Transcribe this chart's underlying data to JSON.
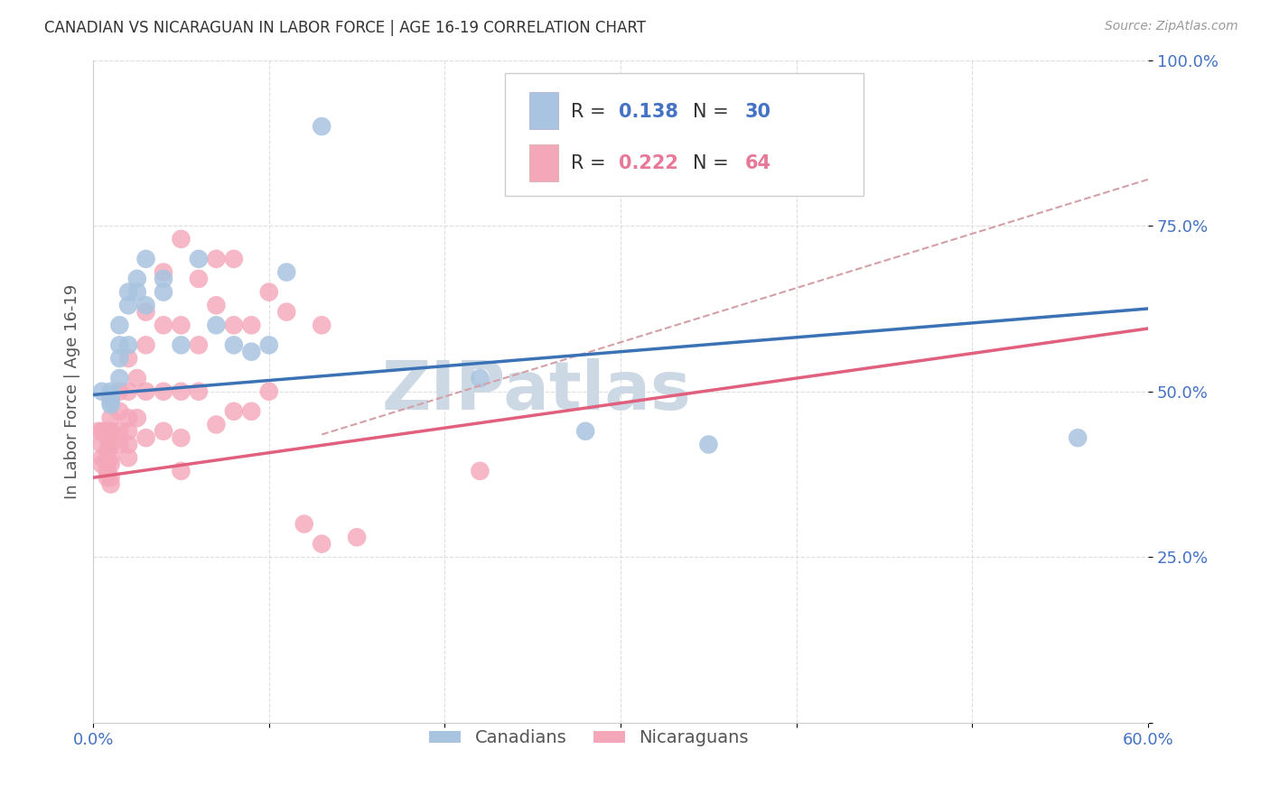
{
  "title": "CANADIAN VS NICARAGUAN IN LABOR FORCE | AGE 16-19 CORRELATION CHART",
  "source": "Source: ZipAtlas.com",
  "ylabel": "In Labor Force | Age 16-19",
  "xlim": [
    0.0,
    0.6
  ],
  "ylim": [
    0.0,
    1.0
  ],
  "xticks": [
    0.0,
    0.1,
    0.2,
    0.3,
    0.4,
    0.5,
    0.6
  ],
  "yticks": [
    0.0,
    0.25,
    0.5,
    0.75,
    1.0
  ],
  "background_color": "#ffffff",
  "grid_color": "#dddddd",
  "canadian_color": "#a8c4e0",
  "nicaraguan_color": "#f4a7b9",
  "canadian_line_color": "#3a72b5",
  "nicaraguan_line_color": "#e0607e",
  "dashed_line_color": "#d4a0a8",
  "watermark_text": "ZIPatlas",
  "watermark_color": "#cdd8e5",
  "legend_label_canadian": "Canadians",
  "legend_label_nicaraguan": "Nicaraguans",
  "blue_line_x": [
    0.0,
    0.6
  ],
  "blue_line_y": [
    0.495,
    0.625
  ],
  "pink_line_x": [
    0.0,
    0.6
  ],
  "pink_line_y": [
    0.37,
    0.595
  ],
  "dashed_line_x": [
    0.13,
    0.6
  ],
  "dashed_line_y": [
    0.435,
    0.82
  ],
  "canadian_x": [
    0.005,
    0.01,
    0.01,
    0.01,
    0.01,
    0.015,
    0.015,
    0.015,
    0.015,
    0.02,
    0.02,
    0.02,
    0.025,
    0.025,
    0.03,
    0.03,
    0.04,
    0.04,
    0.05,
    0.06,
    0.07,
    0.08,
    0.09,
    0.1,
    0.11,
    0.13,
    0.22,
    0.28,
    0.35,
    0.56
  ],
  "canadian_y": [
    0.5,
    0.5,
    0.495,
    0.485,
    0.48,
    0.6,
    0.57,
    0.55,
    0.52,
    0.65,
    0.63,
    0.57,
    0.67,
    0.65,
    0.7,
    0.63,
    0.67,
    0.65,
    0.57,
    0.7,
    0.6,
    0.57,
    0.56,
    0.57,
    0.68,
    0.9,
    0.52,
    0.44,
    0.42,
    0.43
  ],
  "nicaraguan_x": [
    0.003,
    0.005,
    0.005,
    0.005,
    0.005,
    0.007,
    0.008,
    0.008,
    0.008,
    0.008,
    0.008,
    0.009,
    0.01,
    0.01,
    0.01,
    0.01,
    0.01,
    0.01,
    0.01,
    0.01,
    0.015,
    0.015,
    0.015,
    0.015,
    0.02,
    0.02,
    0.02,
    0.02,
    0.02,
    0.02,
    0.025,
    0.025,
    0.03,
    0.03,
    0.03,
    0.03,
    0.04,
    0.04,
    0.04,
    0.04,
    0.05,
    0.05,
    0.05,
    0.05,
    0.05,
    0.06,
    0.06,
    0.06,
    0.07,
    0.07,
    0.07,
    0.08,
    0.08,
    0.08,
    0.09,
    0.09,
    0.1,
    0.1,
    0.11,
    0.12,
    0.13,
    0.13,
    0.15,
    0.22
  ],
  "nicaraguan_y": [
    0.44,
    0.44,
    0.42,
    0.4,
    0.39,
    0.44,
    0.43,
    0.41,
    0.39,
    0.38,
    0.37,
    0.44,
    0.49,
    0.46,
    0.44,
    0.42,
    0.4,
    0.39,
    0.37,
    0.36,
    0.5,
    0.47,
    0.44,
    0.42,
    0.55,
    0.5,
    0.46,
    0.44,
    0.42,
    0.4,
    0.52,
    0.46,
    0.62,
    0.57,
    0.5,
    0.43,
    0.68,
    0.6,
    0.5,
    0.44,
    0.73,
    0.6,
    0.5,
    0.43,
    0.38,
    0.67,
    0.57,
    0.5,
    0.7,
    0.63,
    0.45,
    0.7,
    0.6,
    0.47,
    0.6,
    0.47,
    0.65,
    0.5,
    0.62,
    0.3,
    0.6,
    0.27,
    0.28,
    0.38
  ]
}
